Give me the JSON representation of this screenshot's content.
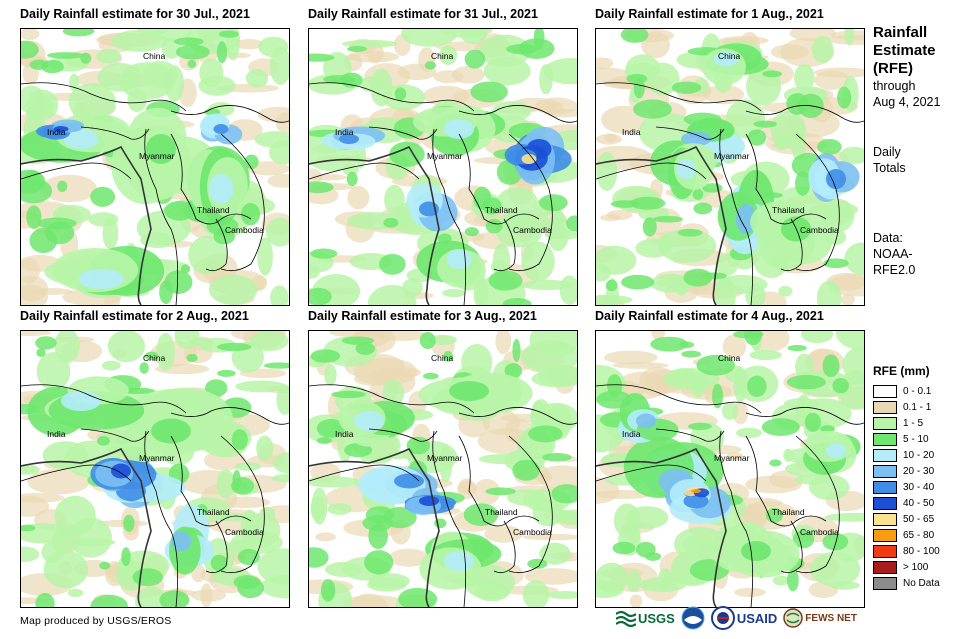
{
  "panels": [
    {
      "title": "Daily Rainfall estimate for 30 Jul., 2021"
    },
    {
      "title": "Daily Rainfall estimate for 31 Jul., 2021"
    },
    {
      "title": "Daily Rainfall estimate for 1 Aug., 2021"
    },
    {
      "title": "Daily Rainfall estimate for 2 Aug., 2021"
    },
    {
      "title": "Daily Rainfall estimate for 3 Aug., 2021"
    },
    {
      "title": "Daily Rainfall estimate for 4 Aug., 2021"
    }
  ],
  "map_labels": {
    "china": "China",
    "india": "India",
    "myanmar": "Myanmar",
    "thailand": "Thailand",
    "cambodia": "Cambodia"
  },
  "sidebar": {
    "title_line1": "Rainfall",
    "title_line2": "Estimate",
    "title_line3": "(RFE)",
    "through": "through",
    "date": "Aug 4, 2021",
    "daily": "Daily",
    "totals": "Totals",
    "data_label": "Data:",
    "data_src1": "NOAA-",
    "data_src2": "RFE2.0"
  },
  "legend": {
    "title": "RFE (mm)",
    "items": [
      {
        "label": "0 - 0.1",
        "color": "#ffffff"
      },
      {
        "label": "0.1 - 1",
        "color": "#ead8b4"
      },
      {
        "label": "1 - 5",
        "color": "#b8f5a8"
      },
      {
        "label": "5 - 10",
        "color": "#6ee76e"
      },
      {
        "label": "10 - 20",
        "color": "#b4ecfa"
      },
      {
        "label": "20 - 30",
        "color": "#7cc0f2"
      },
      {
        "label": "30 - 40",
        "color": "#3f8de6"
      },
      {
        "label": "40 - 50",
        "color": "#1a4fd6"
      },
      {
        "label": "50 - 65",
        "color": "#fae28e"
      },
      {
        "label": "65 - 80",
        "color": "#fa9c10"
      },
      {
        "label": "80 - 100",
        "color": "#f03c10"
      },
      {
        "label": "> 100",
        "color": "#a81c1c"
      },
      {
        "label": "No Data",
        "color": "#8c8c8c"
      }
    ]
  },
  "credit": "Map produced by USGS/EROS",
  "logos": {
    "usgs": "USGS",
    "usaid": "USAID",
    "fewsnet": "FEWS NET"
  }
}
